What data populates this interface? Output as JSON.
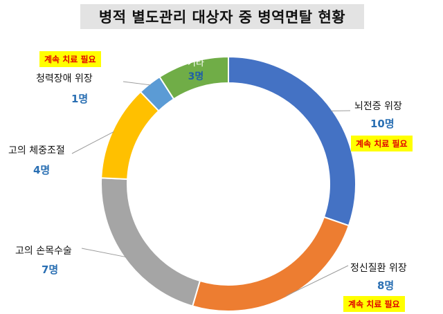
{
  "title": "병적 별도관리 대상자 중 병역면탈 현황",
  "unit": "명",
  "note_text": "계속 치료 필요",
  "chart_data": {
    "type": "pie",
    "donut": true,
    "title": "병적 별도관리 대상자 중 병역면탈 현황",
    "categories": [
      "뇌전증 위장",
      "정신질환 위장",
      "고의 손목수술",
      "고의 체중조절",
      "청력장애 위장",
      "기타"
    ],
    "values": [
      10,
      8,
      7,
      4,
      1,
      3
    ],
    "count_labels": [
      "10명",
      "8명",
      "7명",
      "4명",
      "1명",
      "3명"
    ],
    "colors": [
      "#4472c4",
      "#ed7d31",
      "#a5a5a5",
      "#ffc000",
      "#5b9bd5",
      "#70ad47"
    ],
    "annotated": [
      "뇌전증 위장",
      "정신질환 위장",
      "청력장애 위장"
    ],
    "annotation": "계속 치료 필요",
    "legend": "none"
  }
}
